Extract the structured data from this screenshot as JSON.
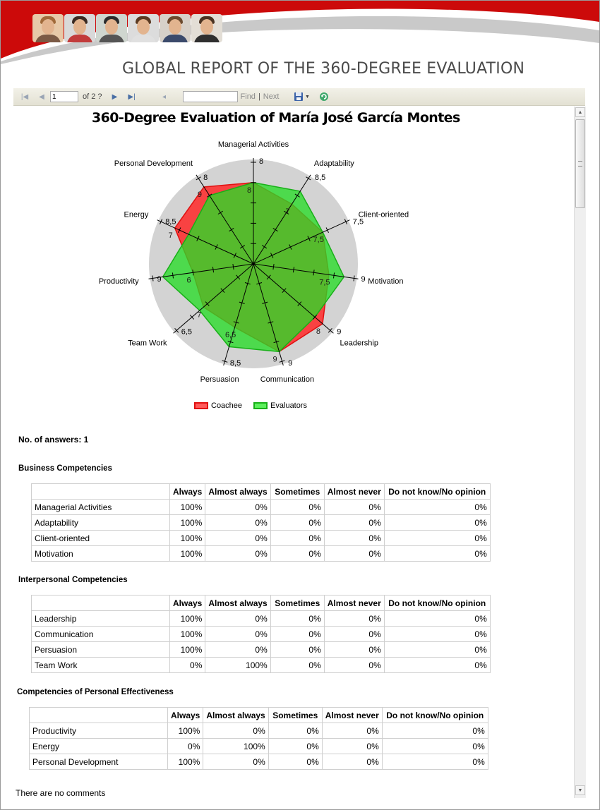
{
  "report": {
    "title": "GLOBAL REPORT OF THE 360-DEGREE EVALUATION"
  },
  "colors": {
    "banner_red": "#cc0a0a",
    "banner_gray": "#c9c9c9",
    "coachee": "#ff3333",
    "evaluators": "#33dd33"
  },
  "toolbar": {
    "first_page_icon": "first-page-icon",
    "prev_page_icon": "prev-page-icon",
    "page_number": "1",
    "page_of": "of 2 ?",
    "next_page_icon": "next-page-icon",
    "last_page_icon": "last-page-icon",
    "back_icon": "back-to-parent-icon",
    "find_value": "",
    "find_label": "Find",
    "separator": "|",
    "next_label": "Next",
    "export_icon": "save-icon",
    "refresh_icon": "refresh-icon"
  },
  "chart_title": "360-Degree Evaluation of María José García Montes",
  "chart_data": {
    "type": "radar",
    "categories": [
      "Managerial Activities",
      "Adaptability",
      "Client-oriented",
      "Motivation",
      "Leadership",
      "Communication",
      "Persuasion",
      "Team Work",
      "Productivity",
      "Energy",
      "Personal Development"
    ],
    "series": [
      {
        "name": "Coachee",
        "values": [
          8,
          7,
          7.5,
          7.5,
          9,
          9,
          6.5,
          6.5,
          6,
          8.5,
          9
        ]
      },
      {
        "name": "Evaluators",
        "values": [
          8,
          8.5,
          7.5,
          9,
          8,
          9,
          8.5,
          7,
          9,
          7,
          8
        ]
      }
    ],
    "axis_max_labels": [
      "8",
      "8,5",
      "7,5",
      "9",
      "9",
      "9",
      "8,5",
      "6,5",
      "9",
      "8,5",
      "8"
    ],
    "data_labels": [
      {
        "category": "Managerial Activities",
        "text": "8"
      },
      {
        "category": "Adaptability",
        "text": "7"
      },
      {
        "category": "Client-oriented",
        "text": "7,5"
      },
      {
        "category": "Motivation",
        "text": "7,5"
      },
      {
        "category": "Leadership",
        "text": "8"
      },
      {
        "category": "Communication",
        "text": "9"
      },
      {
        "category": "Persuasion",
        "text": "6,5"
      },
      {
        "category": "Team Work",
        "text": "7"
      },
      {
        "category": "Productivity",
        "text": "6"
      },
      {
        "category": "Energy",
        "text": "7"
      },
      {
        "category": "Personal Development",
        "text": "9"
      }
    ],
    "legend": [
      "Coachee",
      "Evaluators"
    ],
    "legend_position": "bottom"
  },
  "answers": "No. of answers: 1",
  "tables": [
    {
      "title": "Business Competencies",
      "headers": [
        "",
        "Always",
        "Almost always",
        "Sometimes",
        "Almost never",
        "Do not know/No opinion"
      ],
      "rows": [
        [
          "Managerial Activities",
          "100%",
          "0%",
          "0%",
          "0%",
          "0%"
        ],
        [
          "Adaptability",
          "100%",
          "0%",
          "0%",
          "0%",
          "0%"
        ],
        [
          "Client-oriented",
          "100%",
          "0%",
          "0%",
          "0%",
          "0%"
        ],
        [
          "Motivation",
          "100%",
          "0%",
          "0%",
          "0%",
          "0%"
        ]
      ]
    },
    {
      "title": "Interpersonal Competencies",
      "headers": [
        "",
        "Always",
        "Almost always",
        "Sometimes",
        "Almost never",
        "Do not know/No opinion"
      ],
      "rows": [
        [
          "Leadership",
          "100%",
          "0%",
          "0%",
          "0%",
          "0%"
        ],
        [
          "Communication",
          "100%",
          "0%",
          "0%",
          "0%",
          "0%"
        ],
        [
          "Persuasion",
          "100%",
          "0%",
          "0%",
          "0%",
          "0%"
        ],
        [
          "Team Work",
          "0%",
          "100%",
          "0%",
          "0%",
          "0%"
        ]
      ]
    },
    {
      "title": "Competencies of Personal Effectiveness",
      "headers": [
        "",
        "Always",
        "Almost always",
        "Sometimes",
        "Almost never",
        "Do not know/No opinion"
      ],
      "rows": [
        [
          "Productivity",
          "100%",
          "0%",
          "0%",
          "0%",
          "0%"
        ],
        [
          "Energy",
          "0%",
          "100%",
          "0%",
          "0%",
          "0%"
        ],
        [
          "Personal Development",
          "100%",
          "0%",
          "0%",
          "0%",
          "0%"
        ]
      ]
    }
  ],
  "comments": "There are no comments"
}
